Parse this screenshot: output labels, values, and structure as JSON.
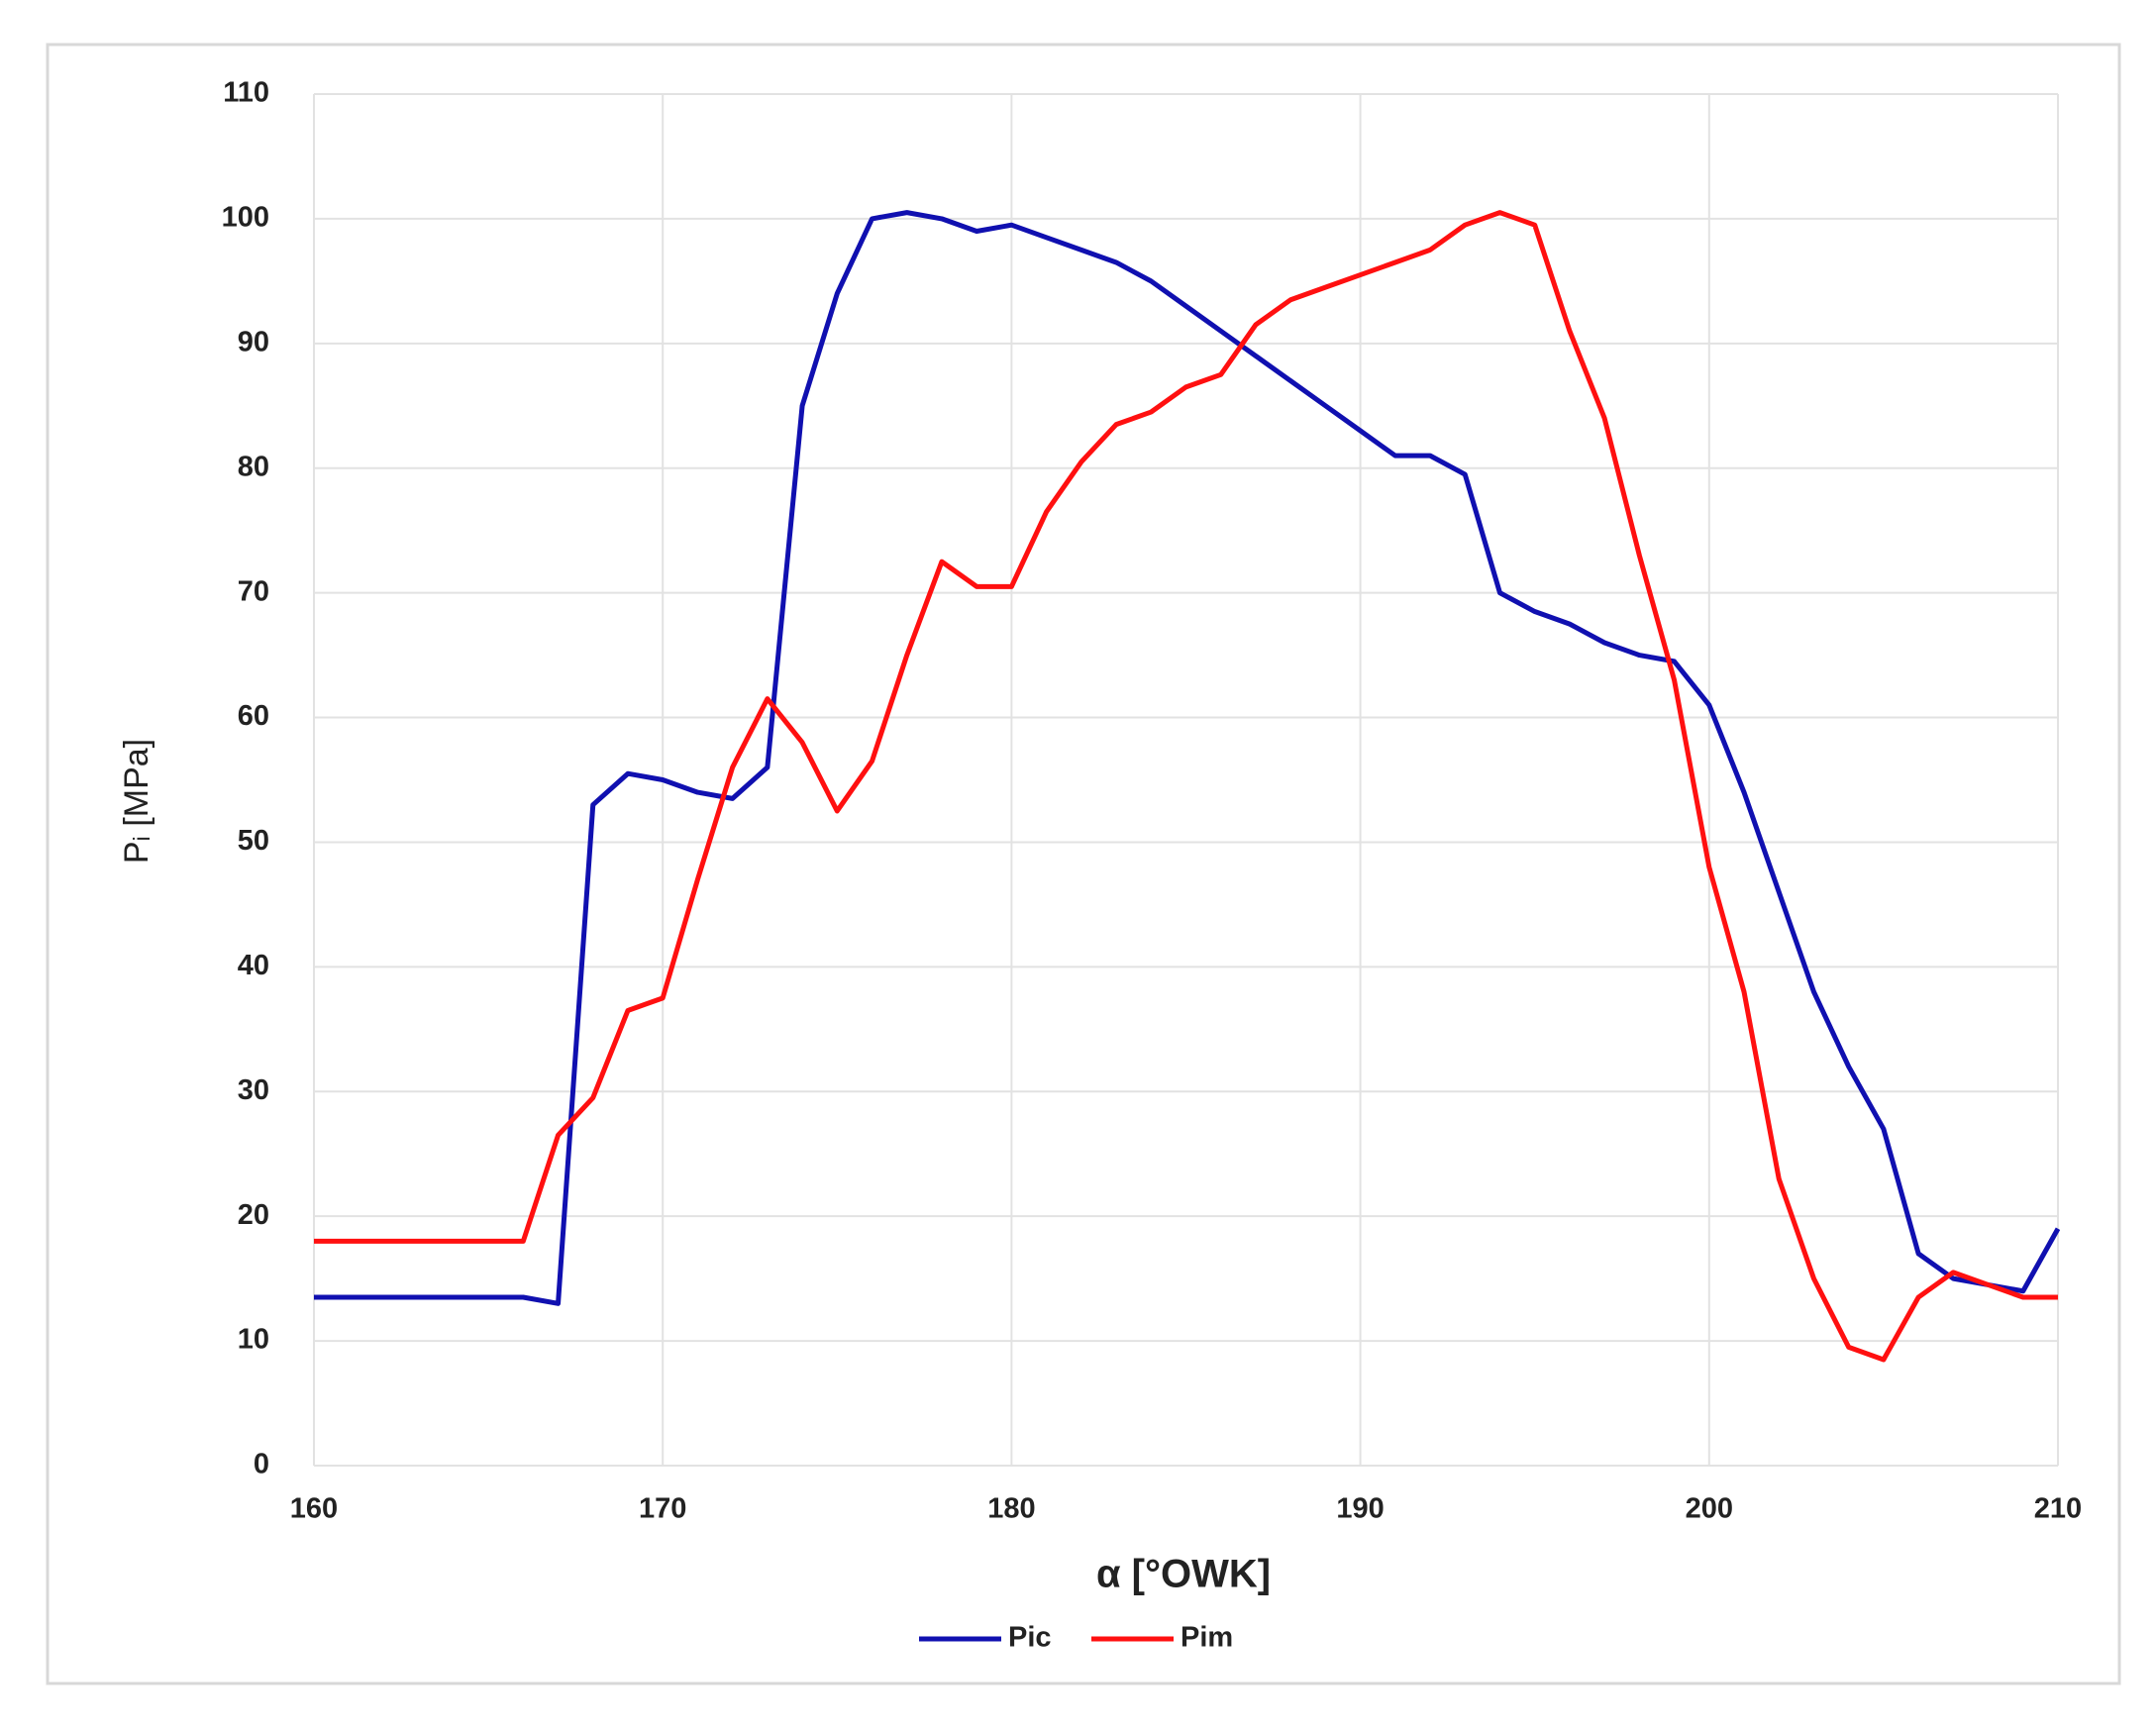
{
  "chart_data": {
    "type": "line",
    "xlabel": "α [°OWK]",
    "ylabel": "Pᵢ [MPa]",
    "x": [
      160,
      161,
      162,
      163,
      164,
      165,
      166,
      167,
      168,
      169,
      170,
      171,
      172,
      173,
      174,
      175,
      176,
      177,
      178,
      179,
      180,
      181,
      182,
      183,
      184,
      185,
      186,
      187,
      188,
      189,
      190,
      191,
      192,
      193,
      194,
      195,
      196,
      197,
      198,
      199,
      200,
      201,
      202,
      203,
      204,
      205,
      206,
      207,
      208,
      209,
      210
    ],
    "series": [
      {
        "name": "Pic",
        "color": "#1010b0",
        "values": [
          13.5,
          13.5,
          13.5,
          13.5,
          13.5,
          13.5,
          13.5,
          13,
          53,
          55.5,
          55,
          54,
          53.5,
          56,
          85,
          94,
          100,
          100.5,
          100,
          99,
          99.5,
          98.5,
          97.5,
          96.5,
          95,
          93,
          91,
          89,
          87,
          85,
          83,
          81,
          81,
          79.5,
          70,
          68.5,
          67.5,
          66,
          65,
          64.5,
          61,
          54,
          46,
          38,
          32,
          27,
          17,
          15,
          14.5,
          14,
          19
        ]
      },
      {
        "name": "Pim",
        "color": "#ff1010",
        "values": [
          18,
          18,
          18,
          18,
          18,
          18,
          18,
          26.5,
          29.5,
          36.5,
          37.5,
          47,
          56,
          61.5,
          58,
          52.5,
          56.5,
          65,
          72.5,
          70.5,
          70.5,
          76.5,
          80.5,
          83.5,
          84.5,
          86.5,
          87.5,
          91.5,
          93.5,
          94.5,
          95.5,
          96.5,
          97.5,
          99.5,
          100.5,
          99.5,
          91,
          84,
          73,
          63,
          48,
          38,
          23,
          15,
          9.5,
          8.5,
          13.5,
          15.5,
          14.5,
          13.5,
          13.5
        ]
      }
    ],
    "xlim": [
      160,
      210
    ],
    "xticks": [
      160,
      170,
      180,
      190,
      200,
      210
    ],
    "ylim": [
      0,
      110
    ],
    "yticks": [
      0,
      10,
      20,
      30,
      40,
      50,
      60,
      70,
      80,
      90,
      100,
      110
    ],
    "grid": true,
    "legend": "bottom"
  }
}
